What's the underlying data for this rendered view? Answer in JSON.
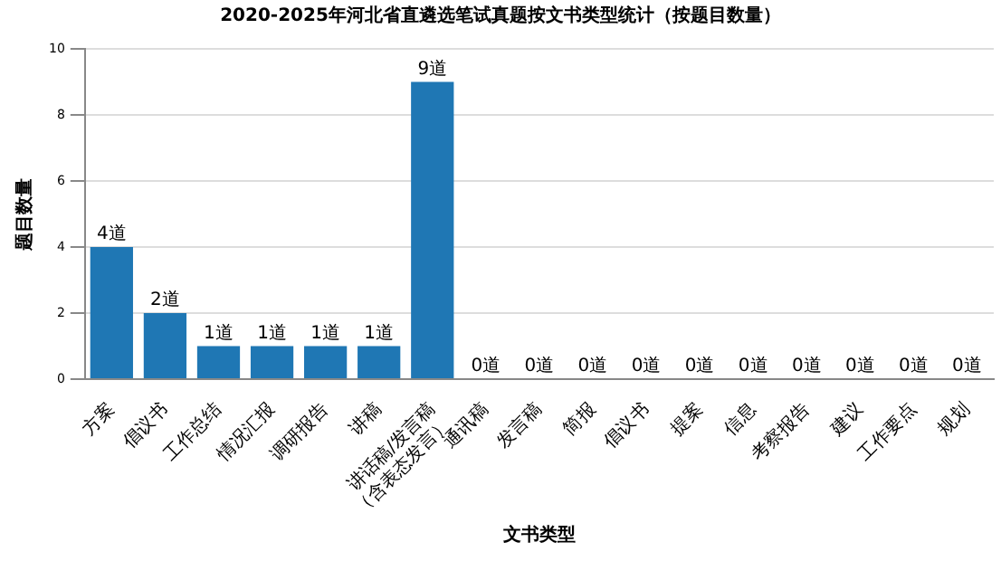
{
  "chart_data": {
    "type": "bar",
    "title": "2020-2025年河北省直遴选笔试真题按文书类型统计（按题目数量）",
    "xlabel": "文书类型",
    "ylabel": "题目数量",
    "categories": [
      "方案",
      "倡议书",
      "工作总结",
      "情况汇报",
      "调研报告",
      "讲稿",
      "讲话稿/发言稿\n（含表态发言）",
      "通讯稿",
      "发言稿",
      "简报",
      "倡议书",
      "提案",
      "信息",
      "考察报告",
      "建议",
      "工作要点",
      "规划"
    ],
    "values": [
      4,
      2,
      1,
      1,
      1,
      1,
      9,
      0,
      0,
      0,
      0,
      0,
      0,
      0,
      0,
      0,
      0
    ],
    "value_labels": [
      "4道",
      "2道",
      "1道",
      "1道",
      "1道",
      "1道",
      "9道",
      "0道",
      "0道",
      "0道",
      "0道",
      "0道",
      "0道",
      "0道",
      "0道",
      "0道",
      "0道"
    ],
    "color": "#1f77b4",
    "ylim": [
      0,
      10
    ],
    "yticks": [
      0,
      2,
      4,
      6,
      8,
      10
    ],
    "grid": "y",
    "legend": false
  }
}
